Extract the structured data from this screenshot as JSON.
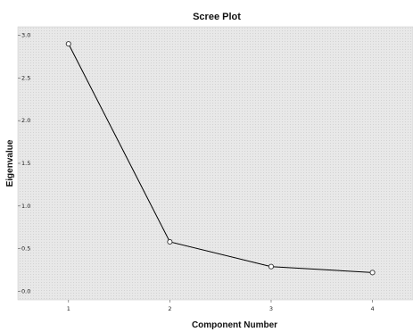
{
  "chart_data": {
    "type": "line",
    "title": "Scree Plot",
    "xlabel": "Component Number",
    "ylabel": "Eigenvalue",
    "x": [
      1,
      2,
      3,
      4
    ],
    "series": [
      {
        "values": [
          2.9,
          0.58,
          0.29,
          0.22
        ]
      }
    ],
    "xticks": [
      "1",
      "2",
      "3",
      "4"
    ],
    "yticks": [
      "0.0",
      "0.5",
      "1.0",
      "1.5",
      "2.0",
      "2.5",
      "3.0"
    ],
    "xlim": [
      0.5,
      4.4
    ],
    "ylim": [
      -0.1,
      3.1
    ],
    "grid": false,
    "legend": "none",
    "colors": {
      "plot_background": "#e8e8e8",
      "line": "#000000",
      "marker_fill": "#ffffff",
      "marker_stroke": "#333333"
    }
  }
}
